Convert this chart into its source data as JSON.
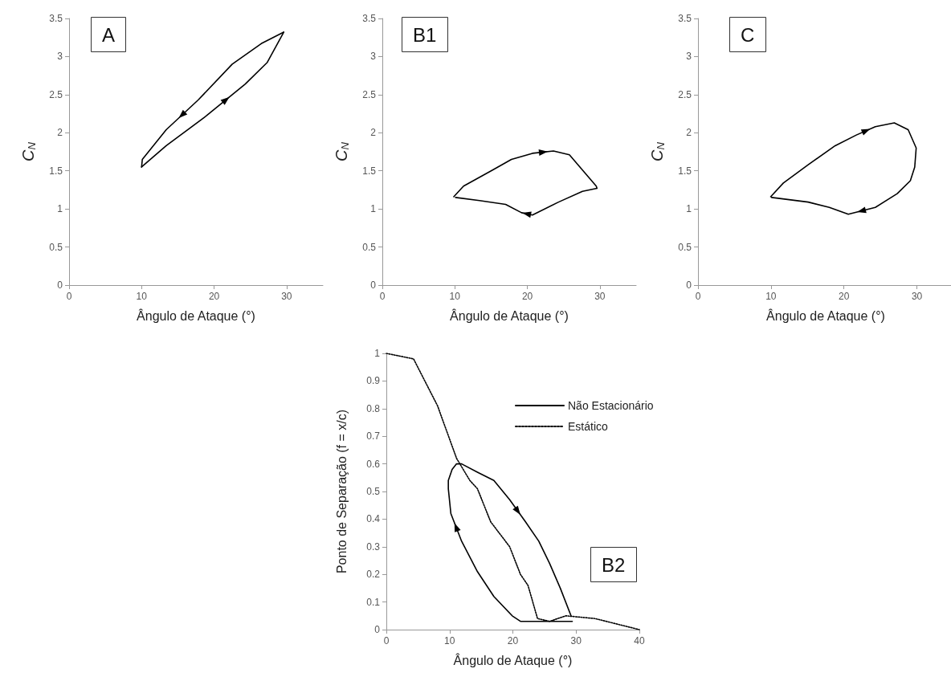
{
  "chart_data": [
    {
      "type": "line",
      "title": "A",
      "xlabel": "Ângulo de Ataque (°)",
      "ylabel": "C$_{N}$",
      "xlim": [
        0,
        35
      ],
      "ylim": [
        0,
        3.5
      ],
      "xticks": [
        0,
        10,
        20,
        30
      ],
      "yticks": [
        0,
        0.5,
        1,
        1.5,
        2,
        2.5,
        3,
        3.5
      ],
      "grid": false,
      "marker": "none",
      "legend": false,
      "series": [
        {
          "color": "#000000",
          "line_style": "solid",
          "x": [
            10,
            13.4,
            18.9,
            24.3,
            27.3,
            29.6
          ],
          "values": [
            1.55,
            1.83,
            2.22,
            2.64,
            2.92,
            3.32
          ]
        },
        {
          "color": "#000000",
          "line_style": "solid",
          "x": [
            29.6,
            26.5,
            22.5,
            17.8,
            13.4,
            10.1,
            10
          ],
          "values": [
            3.32,
            3.17,
            2.9,
            2.43,
            2.04,
            1.65,
            1.55
          ]
        }
      ]
    },
    {
      "type": "line",
      "title": "B1",
      "xlabel": "Ângulo de Ataque (°)",
      "ylabel": "C$_{N}$",
      "xlim": [
        0,
        35
      ],
      "ylim": [
        0,
        3.5
      ],
      "xticks": [
        0,
        10,
        20,
        30
      ],
      "yticks": [
        0,
        0.5,
        1,
        1.5,
        2,
        2.5,
        3,
        3.5
      ],
      "grid": false,
      "marker": "none",
      "legend": false,
      "series": [
        {
          "color": "#000000",
          "line_style": "solid",
          "x": [
            9.85,
            11.2,
            15.2,
            17.8,
            20.7,
            23.6,
            25.8,
            27.6,
            29.5,
            29.6,
            27.6,
            24.3,
            20.7,
            19.2,
            17.0,
            13.4,
            10.1
          ],
          "values": [
            1.16,
            1.3,
            1.51,
            1.65,
            1.73,
            1.76,
            1.71,
            1.51,
            1.3,
            1.27,
            1.23,
            1.09,
            0.92,
            0.95,
            1.06,
            1.11,
            1.15
          ]
        }
      ]
    },
    {
      "type": "line",
      "title": "C",
      "xlabel": "Ângulo de Ataque (°)",
      "ylabel": "C$_{N}$",
      "xlim": [
        0,
        35
      ],
      "ylim": [
        0,
        3.5
      ],
      "xticks": [
        0,
        10,
        20,
        30
      ],
      "yticks": [
        0,
        0.5,
        1,
        1.5,
        2,
        2.5,
        3,
        3.5
      ],
      "grid": false,
      "marker": "none",
      "legend": false,
      "series": [
        {
          "color": "#000000",
          "line_style": "solid",
          "x": [
            9.96,
            11.7,
            15.1,
            18.8,
            21.7,
            24.3,
            26.9,
            28.8,
            29.9,
            29.7,
            29.1,
            27.3,
            24.3,
            20.6,
            18.0,
            15.1,
            10.1
          ],
          "values": [
            1.16,
            1.34,
            1.58,
            1.83,
            1.97,
            2.08,
            2.13,
            2.04,
            1.8,
            1.55,
            1.37,
            1.2,
            1.02,
            0.93,
            1.02,
            1.09,
            1.15
          ]
        }
      ]
    },
    {
      "type": "line",
      "title": "B2",
      "xlabel": "Ângulo de Ataque (°)",
      "ylabel": "Ponto de Separação (f = x/c)",
      "xlim": [
        0,
        40
      ],
      "ylim": [
        0,
        1
      ],
      "xticks": [
        0,
        10,
        20,
        30,
        40
      ],
      "yticks": [
        0,
        0.1,
        0.2,
        0.3,
        0.4,
        0.5,
        0.6,
        0.7,
        0.8,
        0.9,
        1
      ],
      "grid": false,
      "marker": "none",
      "legend": "top right",
      "series": [
        {
          "name": "Não Estacionário",
          "color": "#000000",
          "line_style": "solid",
          "x": [
            29.4,
            25.4,
            21.2,
            19.9,
            17.0,
            14.4,
            11.9,
            10.2,
            9.8,
            9.8,
            10.4,
            11.1,
            11.9,
            14.4,
            17.0,
            19.5,
            22.0,
            24.1,
            25.8,
            27.5,
            29.2
          ],
          "values": [
            0.03,
            0.03,
            0.03,
            0.05,
            0.12,
            0.21,
            0.32,
            0.42,
            0.51,
            0.54,
            0.58,
            0.6,
            0.6,
            0.57,
            0.54,
            0.47,
            0.39,
            0.32,
            0.24,
            0.15,
            0.05
          ]
        },
        {
          "name": "Estático",
          "color": "#000000",
          "line_style": "dotted",
          "x": [
            0,
            4.3,
            8.1,
            11.1,
            13.2,
            14.4,
            16.5,
            19.5,
            21.2,
            22.4,
            23.9,
            25.8,
            28.4,
            33,
            40
          ],
          "values": [
            1.0,
            0.98,
            0.81,
            0.62,
            0.54,
            0.51,
            0.39,
            0.3,
            0.2,
            0.16,
            0.04,
            0.03,
            0.05,
            0.04,
            0
          ]
        }
      ]
    }
  ]
}
